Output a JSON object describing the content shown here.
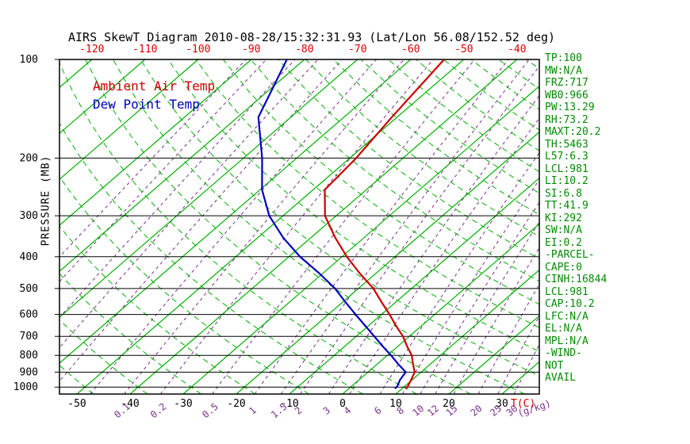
{
  "title": "AIRS SkewT Diagram 2010-08-28/15:32:31.93 (Lat/Lon 56.08/152.52 deg)",
  "legend": {
    "temp_label": "Ambient Air Temp",
    "dewpoint_label": "Dew Point Temp"
  },
  "axes": {
    "pressure_axis_label": "PRESSURE (MB)",
    "pressure_ticks_mb": [
      100,
      200,
      300,
      400,
      500,
      600,
      700,
      800,
      900,
      1000
    ],
    "top_temperature_ticks_c": [
      -120,
      -110,
      -100,
      -90,
      -80,
      -70,
      -60,
      -50,
      -40
    ],
    "bottom_temperature_ticks_c": [
      -50,
      -40,
      -30,
      -20,
      -10,
      0,
      10,
      20,
      30
    ],
    "temperature_unit_label": "T(C)",
    "mixing_ratio_labels_gkg": [
      0.1,
      0.2,
      0.5,
      1,
      1.5,
      2,
      3,
      4,
      6,
      8,
      10,
      12,
      15,
      20,
      25,
      30
    ],
    "mixing_ratio_unit_label": "(g/kg)"
  },
  "stats_panel": [
    "TP:100",
    "MW:N/A",
    "FRZ:717",
    "WB0:966",
    "PW:13.29",
    "RH:73.2",
    "MAXT:20.2",
    "TH:5463",
    "L57:6.3",
    "LCL:981",
    "LI:10.2",
    "SI:6.8",
    "TT:41.9",
    "KI:292",
    "SW:N/A",
    "EI:0.2",
    "-PARCEL-",
    "CAPE:0",
    "CINH:16844",
    "LCL:981",
    "CAP:10.2",
    "LFC:N/A",
    "EL:N/A",
    "MPL:N/A",
    "-WIND-",
    "NOT",
    "AVAIL"
  ],
  "colors": {
    "isotherm_green": "#00B000",
    "adiabat_green": "#00B000",
    "mixing_purple": "#7B2D8E",
    "ambient_red": "#CC0000",
    "dewpoint_blue": "#0000BB",
    "top_axis_red": "#DD0000",
    "stats_green": "#008C00",
    "axis_black": "#000000"
  },
  "chart_data": {
    "type": "line",
    "title": "AIRS SkewT Diagram 2010-08-28/15:32:31.93 (Lat/Lon 56.08/152.52 deg)",
    "x_axis": {
      "label": "T(C)",
      "skewed": true,
      "top_ticks_c": [
        -120,
        -110,
        -100,
        -90,
        -80,
        -70,
        -60,
        -50,
        -40
      ],
      "bottom_ticks_c": [
        -50,
        -40,
        -30,
        -20,
        -10,
        0,
        10,
        20,
        30
      ]
    },
    "y_axis": {
      "label": "PRESSURE (MB)",
      "scale": "log",
      "range_mb": [
        100,
        1050
      ],
      "ticks_mb": [
        100,
        200,
        300,
        400,
        500,
        600,
        700,
        800,
        900,
        1000
      ]
    },
    "grid": {
      "isotherms_c": {
        "start": -160,
        "end": 40,
        "step": 10
      },
      "dry_adiabats_theta_c": {
        "start": -60,
        "end": 190,
        "step": 10
      },
      "mixing_ratio_lines_gkg": [
        0.001,
        0.002,
        0.005,
        0.01,
        0.02,
        0.05,
        0.1,
        0.2,
        0.5,
        1,
        1.5,
        2,
        3,
        4,
        6,
        8,
        10,
        12,
        15,
        20,
        25,
        30
      ]
    },
    "series": [
      {
        "name": "Ambient Air Temp",
        "color_key": "ambient_red",
        "points_p_t": [
          [
            1010,
            10.6
          ],
          [
            1000,
            10.7
          ],
          [
            950,
            9.8
          ],
          [
            900,
            8.8
          ],
          [
            850,
            6.7
          ],
          [
            800,
            4.6
          ],
          [
            750,
            1.7
          ],
          [
            700,
            -1.2
          ],
          [
            650,
            -4.8
          ],
          [
            600,
            -8.5
          ],
          [
            550,
            -12.7
          ],
          [
            500,
            -17.2
          ],
          [
            450,
            -23.0
          ],
          [
            400,
            -29.1
          ],
          [
            350,
            -35.4
          ],
          [
            300,
            -42.1
          ],
          [
            250,
            -47.8
          ],
          [
            200,
            -48.8
          ],
          [
            150,
            -51.0
          ],
          [
            100,
            -53.7
          ]
        ]
      },
      {
        "name": "Dew Point Temp",
        "color_key": "dewpoint_blue",
        "points_p_t": [
          [
            1010,
            8.6
          ],
          [
            1000,
            8.7
          ],
          [
            950,
            7.7
          ],
          [
            900,
            7.1
          ],
          [
            850,
            3.9
          ],
          [
            800,
            0.7
          ],
          [
            750,
            -2.9
          ],
          [
            700,
            -6.6
          ],
          [
            650,
            -10.6
          ],
          [
            600,
            -14.9
          ],
          [
            550,
            -19.5
          ],
          [
            500,
            -24.4
          ],
          [
            450,
            -30.6
          ],
          [
            400,
            -37.9
          ],
          [
            350,
            -45.2
          ],
          [
            300,
            -52.6
          ],
          [
            250,
            -59.6
          ],
          [
            200,
            -66.5
          ],
          [
            150,
            -76.1
          ],
          [
            100,
            -83.3
          ]
        ]
      }
    ]
  }
}
